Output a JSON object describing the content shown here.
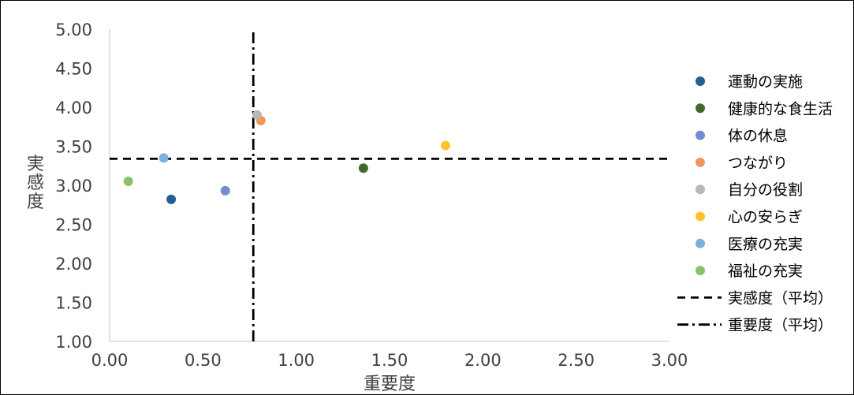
{
  "chart_data": {
    "type": "scatter",
    "xlabel": "重要度",
    "ylabel": "実感度",
    "xlim": [
      0,
      3
    ],
    "ylim": [
      1,
      5
    ],
    "x_ticks": [
      "0.00",
      "0.50",
      "1.00",
      "1.50",
      "2.00",
      "2.50",
      "3.00"
    ],
    "y_ticks": [
      "1.00",
      "1.50",
      "2.00",
      "2.50",
      "3.00",
      "3.50",
      "4.00",
      "4.50",
      "5.00"
    ],
    "grid": false,
    "legend_position": "right",
    "series": [
      {
        "name": "運動の実施",
        "color": "#255e91",
        "points": [
          [
            0.33,
            2.82
          ]
        ]
      },
      {
        "name": "健康的な食生活",
        "color": "#43682b",
        "points": [
          [
            1.36,
            3.22
          ]
        ]
      },
      {
        "name": "体の休息",
        "color": "#6f8ed0",
        "points": [
          [
            0.62,
            2.93
          ]
        ]
      },
      {
        "name": "つながり",
        "color": "#f1975a",
        "points": [
          [
            0.81,
            3.83
          ]
        ]
      },
      {
        "name": "自分の役割",
        "color": "#b7b7b7",
        "points": [
          [
            0.79,
            3.9
          ]
        ]
      },
      {
        "name": "心の安らぎ",
        "color": "#ffc42b",
        "points": [
          [
            1.8,
            3.51
          ]
        ]
      },
      {
        "name": "医療の充実",
        "color": "#7cafdd",
        "points": [
          [
            0.29,
            3.35
          ]
        ]
      },
      {
        "name": "福祉の充実",
        "color": "#8ac165",
        "points": [
          [
            0.1,
            3.05
          ]
        ]
      }
    ],
    "reference_lines": [
      {
        "name": "実感度（平均）",
        "orientation": "horizontal",
        "value": 3.34,
        "style": "dashed",
        "color": "#000000"
      },
      {
        "name": "重要度（平均）",
        "orientation": "vertical",
        "value": 0.77,
        "style": "dash-dot",
        "color": "#000000"
      }
    ]
  }
}
